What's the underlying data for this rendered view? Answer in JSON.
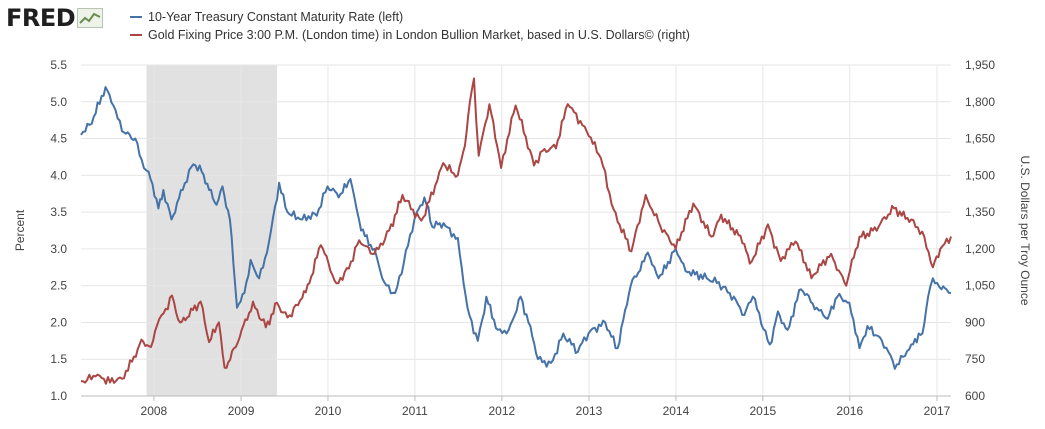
{
  "brand": {
    "name": "FRED",
    "icon": "fred-line-chart-icon"
  },
  "legend": {
    "series1": "10-Year Treasury Constant Maturity Rate (left)",
    "series2": "Gold Fixing Price 3:00 P.M. (London time) in London Bullion Market, based in U.S. Dollars© (right)"
  },
  "colors": {
    "series1": "#4572a7",
    "series2": "#aa4643",
    "recession": "#e1e1e1",
    "grid": "#e6e6e6"
  },
  "chart_data": {
    "type": "line",
    "x_type": "date",
    "xlim": [
      "2007-03-01",
      "2017-03-01"
    ],
    "x_ticks": [
      "2008",
      "2009",
      "2010",
      "2011",
      "2012",
      "2013",
      "2014",
      "2015",
      "2016",
      "2017"
    ],
    "recession": {
      "start": "2007-12-01",
      "end": "2009-06-01"
    },
    "y_left": {
      "label": "Percent",
      "lim": [
        1.0,
        5.5
      ],
      "ticks": [
        "1.0",
        "1.5",
        "2.0",
        "2.5",
        "3.0",
        "3.5",
        "4.0",
        "4.5",
        "5.0",
        "5.5"
      ]
    },
    "y_right": {
      "label": "U.S. Dollars per Troy Ounce",
      "lim": [
        600,
        1950
      ],
      "ticks": [
        "600",
        "750",
        "900",
        "1,050",
        "1,200",
        "1,350",
        "1,500",
        "1,650",
        "1,800",
        "1,950"
      ]
    },
    "grid": true,
    "series": [
      {
        "name": "10-Year Treasury Constant Maturity Rate (left)",
        "axis": "left",
        "points": [
          [
            "2007-03-01",
            4.55
          ],
          [
            "2007-04-15",
            4.7
          ],
          [
            "2007-06-12",
            5.2
          ],
          [
            "2007-07-15",
            4.95
          ],
          [
            "2007-08-20",
            4.6
          ],
          [
            "2007-10-15",
            4.5
          ],
          [
            "2007-11-20",
            4.1
          ],
          [
            "2007-12-10",
            4.05
          ],
          [
            "2008-01-20",
            3.55
          ],
          [
            "2008-02-10",
            3.8
          ],
          [
            "2008-03-15",
            3.4
          ],
          [
            "2008-05-01",
            3.8
          ],
          [
            "2008-06-15",
            4.15
          ],
          [
            "2008-07-20",
            4.05
          ],
          [
            "2008-08-20",
            3.8
          ],
          [
            "2008-09-20",
            3.6
          ],
          [
            "2008-10-15",
            3.85
          ],
          [
            "2008-11-15",
            3.4
          ],
          [
            "2008-12-15",
            2.2
          ],
          [
            "2009-01-15",
            2.4
          ],
          [
            "2009-02-10",
            2.85
          ],
          [
            "2009-03-18",
            2.6
          ],
          [
            "2009-04-20",
            2.95
          ],
          [
            "2009-06-10",
            3.9
          ],
          [
            "2009-07-15",
            3.5
          ],
          [
            "2009-09-15",
            3.4
          ],
          [
            "2009-11-15",
            3.45
          ],
          [
            "2009-12-30",
            3.85
          ],
          [
            "2010-02-15",
            3.7
          ],
          [
            "2010-04-05",
            3.95
          ],
          [
            "2010-05-20",
            3.25
          ],
          [
            "2010-07-15",
            3.0
          ],
          [
            "2010-08-25",
            2.55
          ],
          [
            "2010-10-10",
            2.4
          ],
          [
            "2010-11-15",
            2.8
          ],
          [
            "2010-12-30",
            3.4
          ],
          [
            "2011-02-10",
            3.7
          ],
          [
            "2011-03-15",
            3.3
          ],
          [
            "2011-05-01",
            3.35
          ],
          [
            "2011-06-30",
            3.15
          ],
          [
            "2011-08-10",
            2.2
          ],
          [
            "2011-09-22",
            1.75
          ],
          [
            "2011-10-28",
            2.35
          ],
          [
            "2011-12-15",
            1.9
          ],
          [
            "2012-01-30",
            1.9
          ],
          [
            "2012-03-20",
            2.35
          ],
          [
            "2012-04-30",
            1.95
          ],
          [
            "2012-06-01",
            1.5
          ],
          [
            "2012-07-25",
            1.45
          ],
          [
            "2012-09-15",
            1.85
          ],
          [
            "2012-11-15",
            1.6
          ],
          [
            "2012-12-30",
            1.85
          ],
          [
            "2013-03-10",
            2.0
          ],
          [
            "2013-05-01",
            1.65
          ],
          [
            "2013-06-25",
            2.5
          ],
          [
            "2013-09-05",
            2.95
          ],
          [
            "2013-10-20",
            2.6
          ],
          [
            "2013-12-31",
            3.0
          ],
          [
            "2014-02-10",
            2.7
          ],
          [
            "2014-04-15",
            2.65
          ],
          [
            "2014-06-30",
            2.55
          ],
          [
            "2014-08-15",
            2.4
          ],
          [
            "2014-10-15",
            2.1
          ],
          [
            "2014-11-20",
            2.35
          ],
          [
            "2015-01-30",
            1.7
          ],
          [
            "2015-03-05",
            2.15
          ],
          [
            "2015-04-15",
            1.9
          ],
          [
            "2015-06-10",
            2.45
          ],
          [
            "2015-08-15",
            2.2
          ],
          [
            "2015-09-30",
            2.05
          ],
          [
            "2015-11-10",
            2.35
          ],
          [
            "2015-12-30",
            2.27
          ],
          [
            "2016-02-11",
            1.65
          ],
          [
            "2016-03-15",
            1.95
          ],
          [
            "2016-05-15",
            1.75
          ],
          [
            "2016-06-30",
            1.47
          ],
          [
            "2016-07-08",
            1.37
          ],
          [
            "2016-09-15",
            1.7
          ],
          [
            "2016-11-01",
            1.85
          ],
          [
            "2016-11-25",
            2.35
          ],
          [
            "2016-12-15",
            2.6
          ],
          [
            "2017-01-20",
            2.45
          ],
          [
            "2017-02-10",
            2.45
          ],
          [
            "2017-03-01",
            2.4
          ]
        ]
      },
      {
        "name": "Gold Fixing Price 3:00 P.M. (London time) in London Bullion Market, based in U.S. Dollars© (right)",
        "axis": "right",
        "points": [
          [
            "2007-03-01",
            660
          ],
          [
            "2007-05-01",
            680
          ],
          [
            "2007-07-01",
            655
          ],
          [
            "2007-08-20",
            670
          ],
          [
            "2007-10-01",
            740
          ],
          [
            "2007-11-10",
            830
          ],
          [
            "2007-12-20",
            800
          ],
          [
            "2008-01-15",
            890
          ],
          [
            "2008-03-17",
            1010
          ],
          [
            "2008-04-20",
            900
          ],
          [
            "2008-05-20",
            920
          ],
          [
            "2008-07-15",
            985
          ],
          [
            "2008-08-20",
            820
          ],
          [
            "2008-09-30",
            900
          ],
          [
            "2008-10-24",
            715
          ],
          [
            "2008-12-10",
            800
          ],
          [
            "2009-02-20",
            985
          ],
          [
            "2009-04-15",
            880
          ],
          [
            "2009-06-01",
            980
          ],
          [
            "2009-07-15",
            920
          ],
          [
            "2009-09-15",
            1000
          ],
          [
            "2009-10-15",
            1060
          ],
          [
            "2009-12-02",
            1215
          ],
          [
            "2010-02-05",
            1060
          ],
          [
            "2010-03-30",
            1120
          ],
          [
            "2010-05-12",
            1235
          ],
          [
            "2010-07-15",
            1180
          ],
          [
            "2010-09-15",
            1275
          ],
          [
            "2010-11-10",
            1420
          ],
          [
            "2011-01-28",
            1315
          ],
          [
            "2011-04-30",
            1550
          ],
          [
            "2011-06-30",
            1500
          ],
          [
            "2011-07-30",
            1620
          ],
          [
            "2011-08-20",
            1800
          ],
          [
            "2011-09-06",
            1895
          ],
          [
            "2011-09-26",
            1580
          ],
          [
            "2011-11-10",
            1790
          ],
          [
            "2011-12-29",
            1530
          ],
          [
            "2012-02-28",
            1785
          ],
          [
            "2012-05-15",
            1540
          ],
          [
            "2012-06-20",
            1600
          ],
          [
            "2012-08-15",
            1610
          ],
          [
            "2012-10-04",
            1790
          ],
          [
            "2012-12-31",
            1660
          ],
          [
            "2013-02-20",
            1570
          ],
          [
            "2013-04-15",
            1360
          ],
          [
            "2013-06-28",
            1190
          ],
          [
            "2013-08-27",
            1420
          ],
          [
            "2013-10-20",
            1310
          ],
          [
            "2013-12-31",
            1200
          ],
          [
            "2014-03-15",
            1385
          ],
          [
            "2014-05-30",
            1250
          ],
          [
            "2014-07-10",
            1340
          ],
          [
            "2014-10-15",
            1220
          ],
          [
            "2014-11-07",
            1140
          ],
          [
            "2015-01-22",
            1300
          ],
          [
            "2015-03-17",
            1150
          ],
          [
            "2015-05-18",
            1230
          ],
          [
            "2015-07-24",
            1080
          ],
          [
            "2015-10-15",
            1180
          ],
          [
            "2015-12-17",
            1050
          ],
          [
            "2016-02-11",
            1250
          ],
          [
            "2016-05-01",
            1290
          ],
          [
            "2016-07-05",
            1365
          ],
          [
            "2016-09-15",
            1320
          ],
          [
            "2016-10-31",
            1270
          ],
          [
            "2016-12-15",
            1125
          ],
          [
            "2017-01-15",
            1200
          ],
          [
            "2017-03-01",
            1250
          ]
        ]
      }
    ]
  }
}
